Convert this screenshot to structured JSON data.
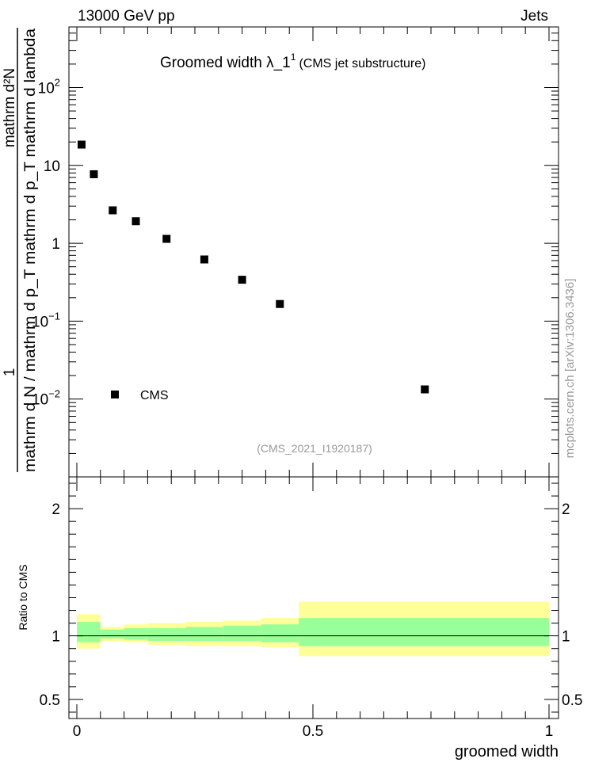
{
  "header": {
    "energy_label": "13000 GeV pp",
    "process_label": "Jets"
  },
  "watermark": "mcplots.cern.ch [arXiv:1306.3436]",
  "colors": {
    "marker": "#000000",
    "band_outer": "#ffff99",
    "band_inner": "#99ff99",
    "axis": "#000000",
    "ref_text": "#999999"
  },
  "chart_data": [
    {
      "type": "scatter",
      "title_main": "Groomed width  λ_1",
      "title_sup": "1",
      "title_note": "(CMS jet substructure)",
      "ylabel_numerator": "mathrm d²N",
      "ylabel_denominator": "mathrm d N / mathrm d p_T mathrm d p_T mathrm d lambda",
      "ylabel_prefix": "1",
      "yscale": "log",
      "xlim": [
        0,
        1
      ],
      "ylim": [
        0.001,
        600
      ],
      "yticks": [
        {
          "value": 0.01,
          "base": "10",
          "exp": "−2"
        },
        {
          "value": 0.1,
          "base": "10",
          "exp": "−1"
        },
        {
          "value": 1,
          "base": "1",
          "exp": ""
        },
        {
          "value": 10,
          "base": "10",
          "exp": ""
        },
        {
          "value": 100,
          "base": "10",
          "exp": "2"
        }
      ],
      "series": [
        {
          "name": "CMS",
          "points": [
            {
              "x": 0.01,
              "y": 18.5
            },
            {
              "x": 0.036,
              "y": 7.7
            },
            {
              "x": 0.076,
              "y": 2.65
            },
            {
              "x": 0.125,
              "y": 1.92
            },
            {
              "x": 0.19,
              "y": 1.14
            },
            {
              "x": 0.27,
              "y": 0.62
            },
            {
              "x": 0.35,
              "y": 0.34
            },
            {
              "x": 0.43,
              "y": 0.166
            },
            {
              "x": 0.737,
              "y": 0.0133
            }
          ]
        }
      ],
      "legend": {
        "entry": "CMS",
        "placement": "bottom-left"
      },
      "reference_label": "(CMS_2021_I1920187)"
    },
    {
      "type": "area",
      "ylabel": "Ratio to CMS",
      "xlabel": "groomed width",
      "xlim": [
        0,
        1
      ],
      "ylim": [
        0.35,
        2.25
      ],
      "yticks": [
        0.5,
        1,
        2
      ],
      "xticks": [
        0,
        0.5,
        1
      ],
      "xtick_labels": [
        "0",
        "0.5",
        "1"
      ],
      "ytick_labels": [
        "0.5",
        "1",
        "2"
      ],
      "reference_line": 1,
      "bins": [
        {
          "x0": 0.0,
          "x1": 0.05,
          "outer": [
            0.9,
            1.17
          ],
          "inner": [
            0.95,
            1.11
          ]
        },
        {
          "x0": 0.05,
          "x1": 0.1,
          "outer": [
            0.96,
            1.07
          ],
          "inner": [
            0.98,
            1.05
          ]
        },
        {
          "x0": 0.1,
          "x1": 0.15,
          "outer": [
            0.95,
            1.09
          ],
          "inner": [
            0.97,
            1.06
          ]
        },
        {
          "x0": 0.15,
          "x1": 0.23,
          "outer": [
            0.93,
            1.1
          ],
          "inner": [
            0.96,
            1.06
          ]
        },
        {
          "x0": 0.23,
          "x1": 0.31,
          "outer": [
            0.92,
            1.11
          ],
          "inner": [
            0.96,
            1.07
          ]
        },
        {
          "x0": 0.31,
          "x1": 0.39,
          "outer": [
            0.92,
            1.12
          ],
          "inner": [
            0.96,
            1.08
          ]
        },
        {
          "x0": 0.39,
          "x1": 0.47,
          "outer": [
            0.91,
            1.14
          ],
          "inner": [
            0.95,
            1.09
          ]
        },
        {
          "x0": 0.47,
          "x1": 1.0,
          "outer": [
            0.84,
            1.27
          ],
          "inner": [
            0.92,
            1.14
          ]
        }
      ]
    }
  ]
}
